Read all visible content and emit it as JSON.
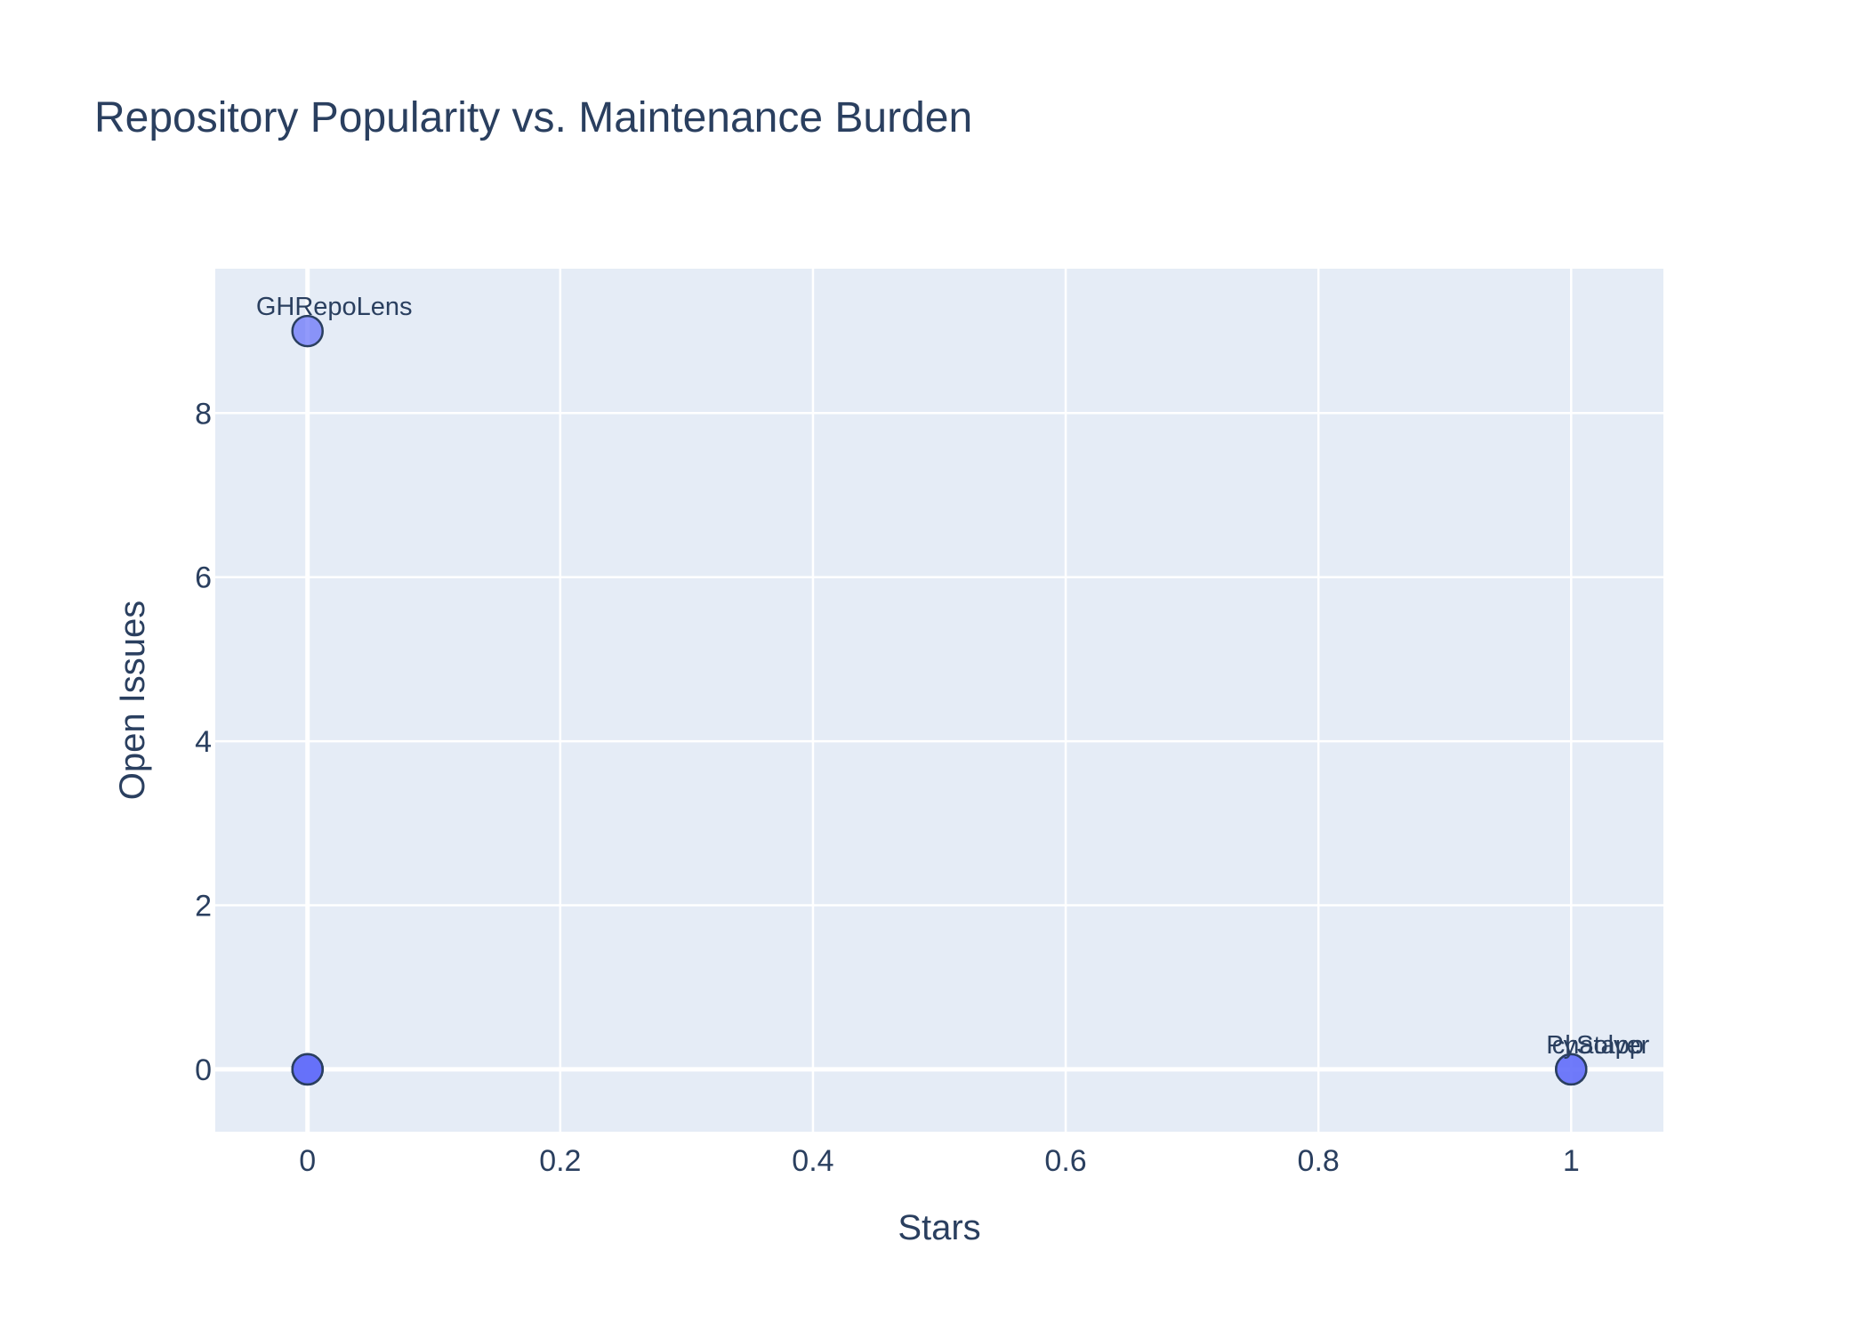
{
  "chart_data": {
    "type": "scatter",
    "title": "Repository Popularity vs. Maintenance Burden",
    "xlabel": "Stars",
    "ylabel": "Open Issues",
    "xlim": [
      -0.073,
      1.073
    ],
    "ylim": [
      -0.76,
      9.76
    ],
    "x_ticks": [
      0,
      0.2,
      0.4,
      0.6,
      0.8,
      1
    ],
    "x_tick_labels": [
      "0",
      "0.2",
      "0.4",
      "0.6",
      "0.8",
      "1"
    ],
    "y_ticks": [
      0,
      2,
      4,
      6,
      8
    ],
    "y_tick_labels": [
      "0",
      "2",
      "4",
      "6",
      "8"
    ],
    "grid": true,
    "legend": "none",
    "colors": {
      "plot_bg": "#e5ecf6",
      "grid": "#ffffff",
      "marker": "#636efa",
      "marker_outline": "#2a3f5f",
      "text": "#2a3f5f"
    },
    "points": [
      {
        "x": 0,
        "y": 9,
        "label": "GHRepoLens"
      },
      {
        "x": 0,
        "y": 0,
        "label": ""
      },
      {
        "x": 0,
        "y": 0,
        "label": ""
      },
      {
        "x": 0,
        "y": 0,
        "label": ""
      },
      {
        "x": 1,
        "y": 0,
        "label": "PySolver"
      },
      {
        "x": 1,
        "y": 0,
        "label": "chatapp"
      }
    ]
  }
}
